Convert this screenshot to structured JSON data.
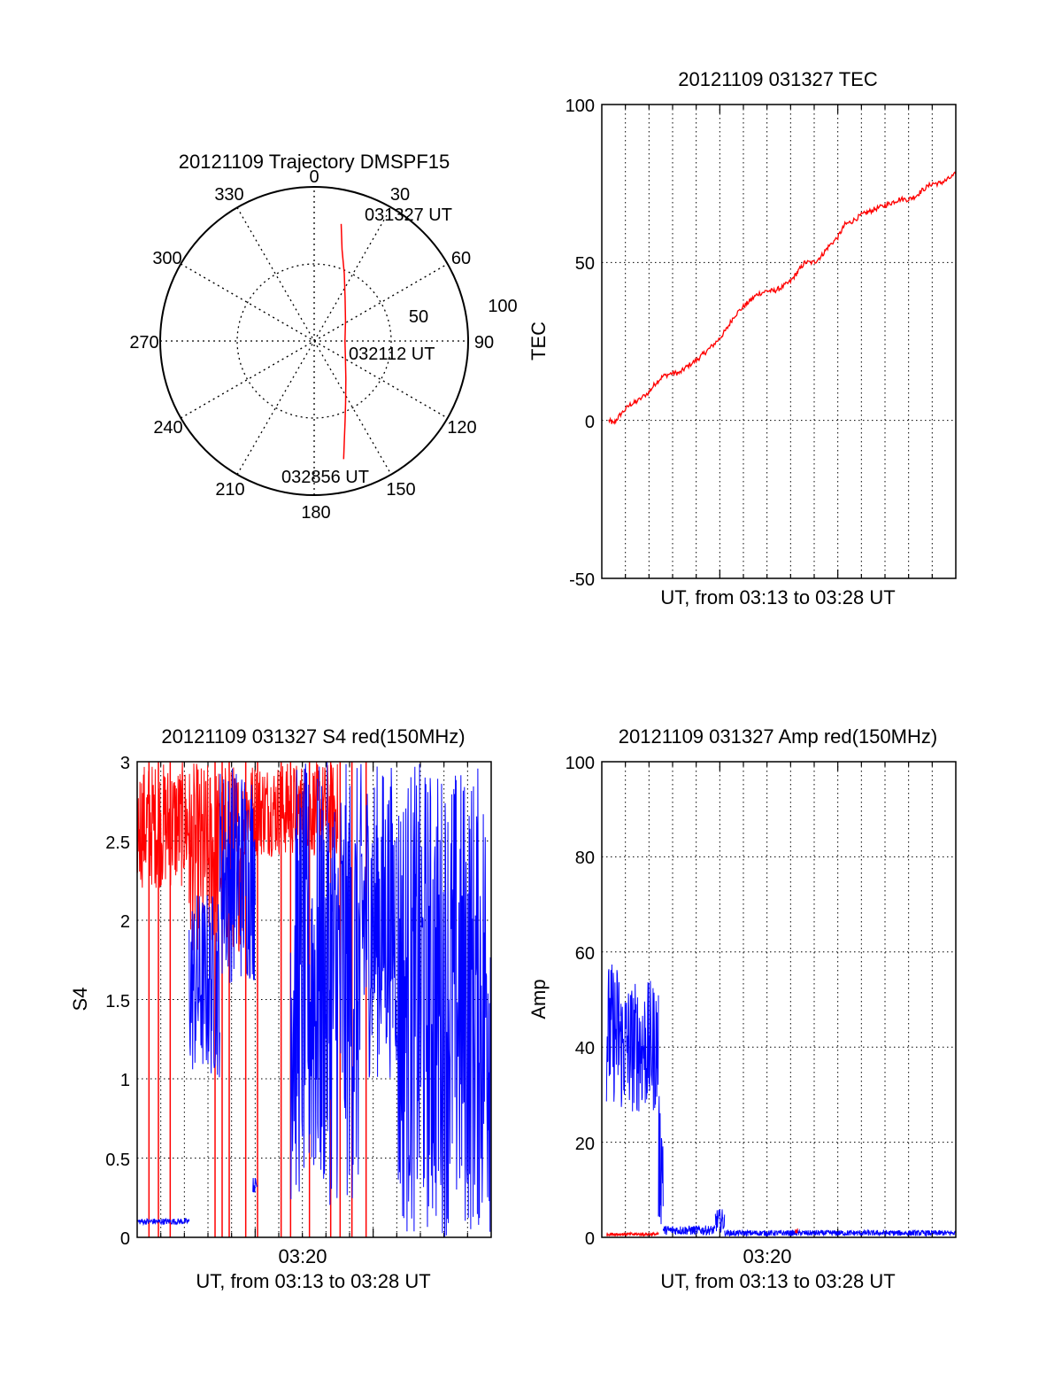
{
  "colors": {
    "red": "#ff0000",
    "blue": "#0000ff",
    "axis": "#000000",
    "grid": "#000000"
  },
  "chart_data": [
    {
      "id": "trajectory",
      "type": "polar",
      "title": "20121109 Trajectory DMSPF15",
      "azimuth_labels": [
        "0",
        "30",
        "60",
        "90",
        "120",
        "150",
        "180",
        "210",
        "240",
        "270",
        "300",
        "330"
      ],
      "radial_labels": [
        "50",
        "100"
      ],
      "radial_range": [
        0,
        100
      ],
      "grid": true,
      "annotations": [
        "031327 UT",
        "032112 UT",
        "032856 UT"
      ],
      "series": [
        {
          "color": "#ff0000",
          "points": [
            {
              "az": 13,
              "r": 78
            },
            {
              "az": 17,
              "r": 62
            },
            {
              "az": 24,
              "r": 48
            },
            {
              "az": 35,
              "r": 35
            },
            {
              "az": 58,
              "r": 24
            },
            {
              "az": 90,
              "r": 20
            },
            {
              "az": 118,
              "r": 23
            },
            {
              "az": 140,
              "r": 32
            },
            {
              "az": 153,
              "r": 45
            },
            {
              "az": 159,
              "r": 56
            },
            {
              "az": 163,
              "r": 67
            },
            {
              "az": 166,
              "r": 79
            }
          ]
        }
      ]
    },
    {
      "id": "tec",
      "type": "line",
      "title": "20121109 031327 TEC",
      "xlabel": "UT, from 03:13 to 03:28 UT",
      "ylabel": "TEC",
      "ylim": [
        -50,
        100
      ],
      "yticks": [
        "-50",
        "0",
        "50",
        "100"
      ],
      "xlim": [
        0,
        15
      ],
      "grid": true,
      "series": [
        {
          "color": "#ff0000",
          "x": [
            0.3,
            0.5,
            0.8,
            1.2,
            1.5,
            2.0,
            2.3,
            2.6,
            3.0,
            3.3,
            3.6,
            4.0,
            4.3,
            4.6,
            5.0,
            5.3,
            5.6,
            6.0,
            6.3,
            6.6,
            7.0,
            7.3,
            7.6,
            8.0,
            8.3,
            8.6,
            9.0,
            9.3,
            9.6,
            10.0,
            10.3,
            10.6,
            11.0,
            11.3,
            11.6,
            12.0,
            12.3,
            12.6,
            13.0,
            13.3,
            13.6,
            14.0,
            14.3,
            14.6,
            15.0
          ],
          "y": [
            0,
            -1,
            2,
            5,
            6,
            9,
            12,
            14,
            15,
            15,
            17,
            19,
            21,
            23,
            26,
            29,
            33,
            36,
            38,
            40,
            41,
            41,
            42,
            44,
            47,
            50,
            50,
            52,
            55,
            58,
            62,
            63,
            65,
            66,
            67,
            68,
            69,
            70,
            70,
            71,
            73,
            75,
            75,
            76,
            78
          ]
        }
      ]
    },
    {
      "id": "s4",
      "type": "line",
      "title": "20121109 031327 S4 red(150MHz)",
      "xlabel": "UT, from 03:13 to 03:28 UT",
      "ylabel": "S4",
      "xtick_label": "03:20",
      "ylim": [
        0,
        3
      ],
      "yticks": [
        "0",
        "0.5",
        "1",
        "1.5",
        "2",
        "2.5",
        "3"
      ],
      "xlim": [
        0,
        15
      ],
      "grid": true,
      "series": [
        {
          "color": "#ff0000",
          "segments": [
            {
              "x0": 0.0,
              "x1": 2.2,
              "ymin": 2.2,
              "ymax": 3.0
            },
            {
              "x0": 2.2,
              "x1": 4.5,
              "ymin": 1.8,
              "ymax": 3.0
            },
            {
              "x0": 4.5,
              "x1": 8.5,
              "ymin": 2.4,
              "ymax": 3.0
            }
          ],
          "spikes_x": [
            0.5,
            0.9,
            1.4,
            3.3,
            3.6,
            3.9,
            4.6,
            5.1,
            6.1,
            6.5,
            7.3,
            8.2,
            8.6,
            9.1,
            9.7
          ]
        },
        {
          "color": "#0000ff",
          "segments": [
            {
              "x0": 0.0,
              "x1": 2.2,
              "ymin": 0.08,
              "ymax": 0.12
            },
            {
              "x0": 2.2,
              "x1": 3.5,
              "ymin": 1.0,
              "ymax": 2.2
            },
            {
              "x0": 3.5,
              "x1": 5.0,
              "ymin": 1.6,
              "ymax": 3.0
            },
            {
              "x0": 4.9,
              "x1": 5.1,
              "ymin": 0.28,
              "ymax": 0.38
            },
            {
              "x0": 6.5,
              "x1": 9.5,
              "ymin": 0.2,
              "ymax": 3.0
            },
            {
              "x0": 9.5,
              "x1": 11.0,
              "ymin": 1.0,
              "ymax": 3.0
            },
            {
              "x0": 11.0,
              "x1": 15.0,
              "ymin": 0.0,
              "ymax": 3.0
            }
          ]
        }
      ]
    },
    {
      "id": "amp",
      "type": "line",
      "title": "20121109 031327 Amp red(150MHz)",
      "xlabel": "UT, from 03:13 to 03:28 UT",
      "ylabel": "Amp",
      "xtick_label": "03:20",
      "ylim": [
        0,
        100
      ],
      "yticks": [
        "0",
        "20",
        "40",
        "60",
        "80",
        "100"
      ],
      "xlim": [
        0,
        15
      ],
      "grid": true,
      "series": [
        {
          "color": "#0000ff",
          "segments": [
            {
              "x0": 0.2,
              "x1": 0.8,
              "ymin": 28,
              "ymax": 58
            },
            {
              "x0": 0.8,
              "x1": 2.4,
              "ymin": 26,
              "ymax": 54
            },
            {
              "x0": 2.4,
              "x1": 2.6,
              "ymin": 2,
              "ymax": 30
            },
            {
              "x0": 2.6,
              "x1": 4.8,
              "ymin": 0.5,
              "ymax": 2.5
            },
            {
              "x0": 4.8,
              "x1": 5.2,
              "ymin": 1,
              "ymax": 6
            },
            {
              "x0": 5.2,
              "x1": 15.0,
              "ymin": 0.3,
              "ymax": 1.5
            }
          ]
        },
        {
          "color": "#ff0000",
          "segments": [
            {
              "x0": 0.2,
              "x1": 2.4,
              "ymin": 0.3,
              "ymax": 1.0
            },
            {
              "x0": 8.2,
              "x1": 8.3,
              "ymin": 0.3,
              "ymax": 2.0
            }
          ]
        }
      ]
    }
  ]
}
